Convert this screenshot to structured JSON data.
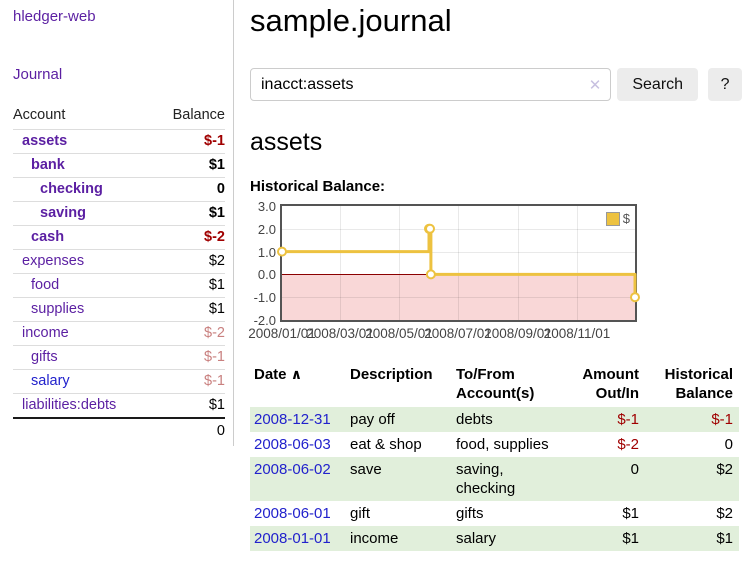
{
  "app_title": "hledger-web",
  "sidebar": {
    "journal_link": "Journal",
    "accounts": {
      "header_account": "Account",
      "header_balance": "Balance",
      "rows": [
        {
          "name": "assets",
          "depth": 1,
          "bold": true,
          "balance": "$-1",
          "neg": "strong"
        },
        {
          "name": "bank",
          "depth": 2,
          "bold": true,
          "balance": "$1"
        },
        {
          "name": "checking",
          "depth": 3,
          "bold": true,
          "balance": "0"
        },
        {
          "name": "saving",
          "depth": 3,
          "bold": true,
          "balance": "$1"
        },
        {
          "name": "cash",
          "depth": 2,
          "bold": true,
          "balance": "$-2",
          "neg": "strong"
        },
        {
          "name": "expenses",
          "depth": 1,
          "balance": "$2"
        },
        {
          "name": "food",
          "depth": 2,
          "balance": "$1"
        },
        {
          "name": "supplies",
          "depth": 2,
          "balance": "$1"
        },
        {
          "name": "income",
          "depth": 1,
          "balance": "$-2",
          "neg": "soft"
        },
        {
          "name": "gifts",
          "depth": 2,
          "balance": "$-1",
          "neg": "soft"
        },
        {
          "name": "salary",
          "depth": 2,
          "blue": true,
          "balance": "$-1",
          "neg": "soft"
        },
        {
          "name": "liabilities:debts",
          "depth": 1,
          "balance": "$1"
        }
      ],
      "total": "0"
    }
  },
  "page": {
    "title": "sample.journal"
  },
  "search": {
    "value": "inacct:assets",
    "clear_icon": "✕",
    "search_label": "Search",
    "help_label": "?"
  },
  "account_section": {
    "title": "assets",
    "chart_heading": "Historical Balance:"
  },
  "chart_data": {
    "type": "line",
    "step": true,
    "title": "Historical Balance",
    "series": [
      {
        "name": "$",
        "color": "#EDC240",
        "points": [
          [
            "2008-01-01",
            1
          ],
          [
            "2008-06-01",
            2
          ],
          [
            "2008-06-02",
            2
          ],
          [
            "2008-06-03",
            0
          ],
          [
            "2008-12-31",
            -1
          ]
        ]
      }
    ],
    "xlim": [
      "2008-01-01",
      "2008-12-31"
    ],
    "ylim": [
      -2,
      3
    ],
    "yticks": [
      3,
      2,
      1,
      0,
      -1,
      -2
    ],
    "xticks": [
      [
        "2008-01-01",
        "2008/01/01"
      ],
      [
        "2008-03-01",
        "2008/03/01"
      ],
      [
        "2008-05-01",
        "2008/05/01"
      ],
      [
        "2008-07-01",
        "2008/07/01"
      ],
      [
        "2008-09-01",
        "2008/09/01"
      ],
      [
        "2008-11-01",
        "2008/11/01"
      ]
    ],
    "legend": {
      "label": "$",
      "position": "top-right"
    },
    "grid": true,
    "negative_region_color": "#f9d7d7",
    "zero_line_color": "#8b0000"
  },
  "register": {
    "headers": {
      "date": "Date",
      "sort_icon": "∧",
      "description": "Description",
      "accounts": "To/From Account(s)",
      "amount": "Amount Out/In",
      "balance": "Historical Balance"
    },
    "rows": [
      {
        "date": "2008-12-31",
        "description": "pay off",
        "accounts": "debts",
        "amount": "$-1",
        "balance": "$-1"
      },
      {
        "date": "2008-06-03",
        "description": "eat & shop",
        "accounts": "food, supplies",
        "amount": "$-2",
        "balance": "0"
      },
      {
        "date": "2008-06-02",
        "description": "save",
        "accounts": "saving, checking",
        "amount": "0",
        "balance": "$2"
      },
      {
        "date": "2008-06-01",
        "description": "gift",
        "accounts": "gifts",
        "amount": "$1",
        "balance": "$2"
      },
      {
        "date": "2008-01-01",
        "description": "income",
        "accounts": "salary",
        "amount": "$1",
        "balance": "$1"
      }
    ]
  },
  "colors": {
    "purple_link": "#5b1fa2",
    "blue_link": "#2222cc",
    "negative_strong": "#a00000",
    "negative_soft": "#c9807f",
    "row_stripe_green": "#e1efdb",
    "series_gold": "#EDC240"
  }
}
